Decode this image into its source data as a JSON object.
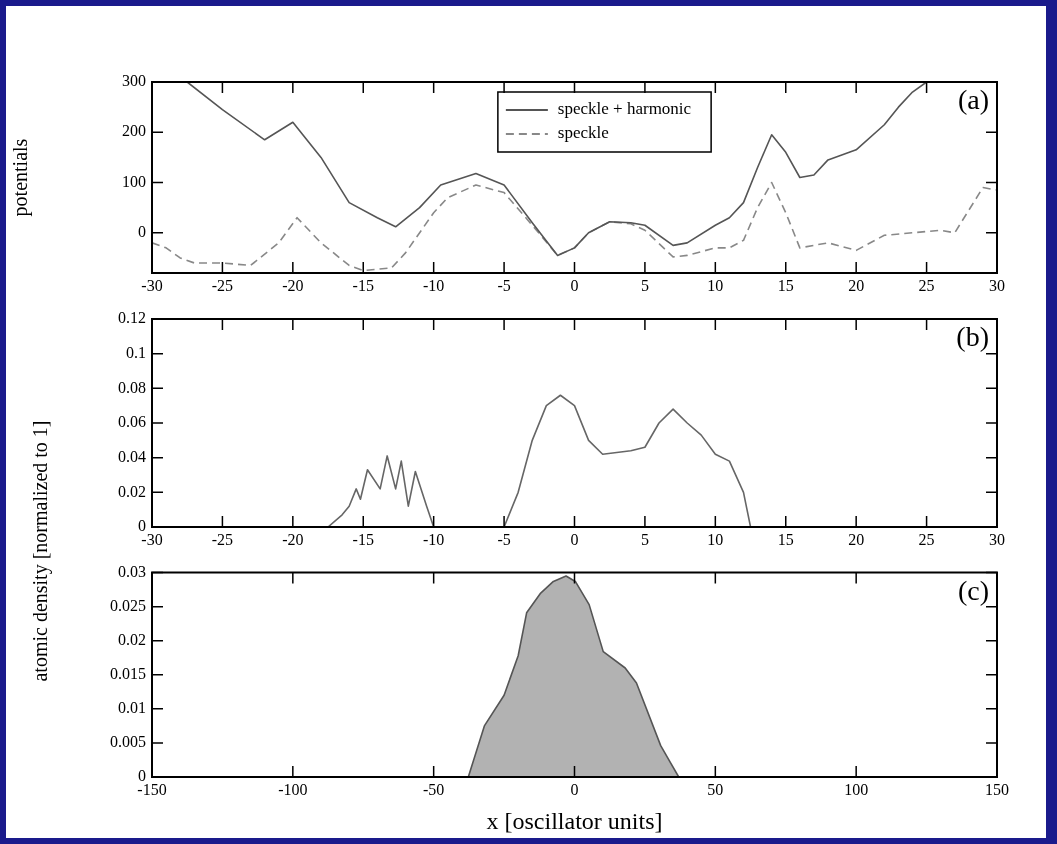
{
  "chart_data": [
    {
      "type": "line",
      "ylabel": "potentials",
      "xlim": [
        -30,
        30
      ],
      "xticks": [
        -30,
        -25,
        -20,
        -15,
        -10,
        -5,
        0,
        5,
        10,
        15,
        20,
        25,
        30
      ],
      "ylim": [
        -80,
        300
      ],
      "yticks": [
        0,
        100,
        200,
        300
      ],
      "grid": false,
      "legend": "top",
      "marker": "none",
      "annotations": [
        "(a)"
      ],
      "series": [
        {
          "name": "speckle + harmonic",
          "color": "#555555",
          "line_style": "solid",
          "x": [
            -27.5,
            -25,
            -22,
            -20,
            -18,
            -16,
            -14,
            -12.7,
            -11,
            -9.5,
            -7,
            -5,
            -3,
            -1.2,
            0,
            1,
            2.5,
            4,
            5,
            7,
            8,
            10,
            11,
            12,
            13,
            14,
            15,
            16,
            17,
            18,
            20,
            22,
            23,
            24,
            25
          ],
          "values": [
            300,
            245,
            185,
            220,
            150,
            60,
            30,
            12,
            50,
            95,
            118,
            95,
            20,
            -45,
            -30,
            0,
            22,
            20,
            15,
            -25,
            -20,
            15,
            30,
            60,
            130,
            195,
            160,
            110,
            115,
            145,
            165,
            215,
            250,
            280,
            300
          ]
        },
        {
          "name": "speckle",
          "color": "#888888",
          "line_style": "dashed",
          "x": [
            -30,
            -29,
            -28,
            -27,
            -25,
            -23,
            -21,
            -19.7,
            -18,
            -16,
            -15,
            -13,
            -12,
            -10,
            -9,
            -7,
            -5,
            -3,
            -1.2,
            0,
            1,
            2.5,
            4,
            5,
            7,
            8,
            10,
            11,
            12,
            13,
            14,
            15,
            16,
            17,
            18,
            20,
            22,
            24,
            26,
            27,
            29,
            30
          ],
          "values": [
            -20,
            -30,
            -50,
            -60,
            -60,
            -65,
            -20,
            30,
            -20,
            -65,
            -75,
            -70,
            -40,
            40,
            70,
            95,
            80,
            15,
            -45,
            -30,
            0,
            22,
            18,
            5,
            -48,
            -45,
            -30,
            -30,
            -15,
            50,
            100,
            40,
            -30,
            -25,
            -20,
            -35,
            -5,
            0,
            5,
            0,
            90,
            85
          ]
        }
      ]
    },
    {
      "type": "line",
      "ylabel": "atomic density [normalized to 1]",
      "xlim": [
        -30,
        30
      ],
      "xticks": [
        -30,
        -25,
        -20,
        -15,
        -10,
        -5,
        0,
        5,
        10,
        15,
        20,
        25,
        30
      ],
      "ylim": [
        0,
        0.12
      ],
      "yticks": [
        0,
        0.02,
        0.04,
        0.06,
        0.08,
        0.1,
        0.12
      ],
      "grid": false,
      "marker": "none",
      "annotations": [
        "(b)"
      ],
      "series": [
        {
          "color": "#666666",
          "line_style": "solid",
          "x": [
            -30,
            -17.5,
            -16.5,
            -16,
            -15.5,
            -15.2,
            -14.7,
            -13.8,
            -13.3,
            -12.7,
            -12.3,
            -11.8,
            -11.3,
            -10.5,
            -10,
            -5,
            -4,
            -3,
            -2,
            -1,
            0,
            1,
            2,
            3,
            4,
            5,
            6,
            7,
            8,
            9,
            10,
            11,
            12,
            12.5,
            30
          ],
          "values": [
            0,
            0,
            0.007,
            0.012,
            0.022,
            0.016,
            0.033,
            0.022,
            0.041,
            0.022,
            0.038,
            0.012,
            0.032,
            0.012,
            0,
            0,
            0.02,
            0.05,
            0.07,
            0.076,
            0.07,
            0.05,
            0.042,
            0.043,
            0.044,
            0.046,
            0.06,
            0.068,
            0.06,
            0.053,
            0.042,
            0.038,
            0.02,
            0,
            0
          ]
        }
      ]
    },
    {
      "type": "area",
      "xlabel": "x [oscillator units]",
      "xlim": [
        -150,
        150
      ],
      "xticks": [
        -150,
        -100,
        -50,
        0,
        50,
        100,
        150
      ],
      "ylim": [
        0,
        0.03
      ],
      "yticks": [
        0,
        0.005,
        0.01,
        0.015,
        0.02,
        0.025,
        0.03
      ],
      "grid": false,
      "marker": "none",
      "annotations": [
        "(c)"
      ],
      "series": [
        {
          "color": "#555555",
          "line_style": "solid",
          "x": [
            -150,
            -37.7,
            -32,
            -25,
            -20,
            -17,
            -12,
            -7.5,
            -3,
            0.3,
            5.2,
            10.2,
            18,
            22,
            30.6,
            37,
            150
          ],
          "values": [
            0,
            0,
            0.0075,
            0.012,
            0.0178,
            0.0241,
            0.027,
            0.0287,
            0.0295,
            0.0287,
            0.0253,
            0.0184,
            0.016,
            0.0138,
            0.0046,
            0,
            0
          ]
        }
      ]
    }
  ]
}
